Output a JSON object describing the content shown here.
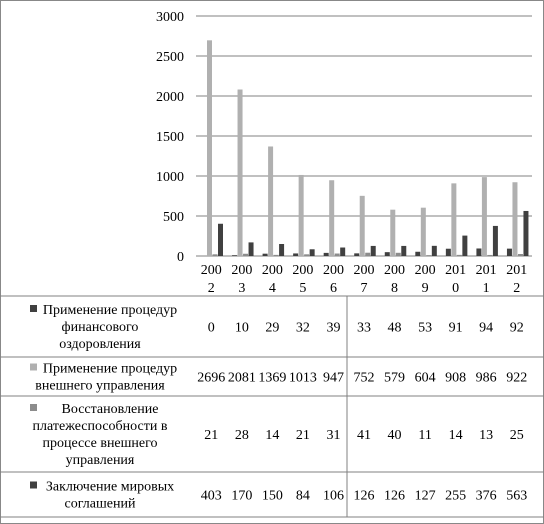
{
  "chart_data": {
    "type": "bar",
    "categories": [
      "2002",
      "2003",
      "2004",
      "2005",
      "2006",
      "2007",
      "2008",
      "2009",
      "2010",
      "2011",
      "2012"
    ],
    "ylim": [
      0,
      3000
    ],
    "yticks": [
      0,
      500,
      1000,
      1500,
      2000,
      2500,
      3000
    ],
    "grid": true,
    "series": [
      {
        "name": "Применение процедур финансового оздоровления",
        "color": "#404040",
        "values": [
          0,
          10,
          29,
          32,
          39,
          33,
          48,
          53,
          91,
          94,
          92
        ]
      },
      {
        "name": "Применение процедур внешнего управления",
        "color": "#b0b0b0",
        "values": [
          2696,
          2081,
          1369,
          1013,
          947,
          752,
          579,
          604,
          908,
          986,
          922
        ]
      },
      {
        "name": "Восстановление платежеспособности в процессе внешнего управления",
        "color": "#8c8c8c",
        "values": [
          21,
          28,
          14,
          21,
          31,
          41,
          40,
          11,
          14,
          13,
          25
        ]
      },
      {
        "name": "Заключение мировых соглашений",
        "color": "#404040",
        "values": [
          403,
          170,
          150,
          84,
          106,
          126,
          126,
          127,
          255,
          376,
          563
        ]
      }
    ]
  },
  "xtick_lines": [
    [
      "200",
      "2"
    ],
    [
      "200",
      "3"
    ],
    [
      "200",
      "4"
    ],
    [
      "200",
      "5"
    ],
    [
      "200",
      "6"
    ],
    [
      "200",
      "7"
    ],
    [
      "200",
      "8"
    ],
    [
      "200",
      "9"
    ],
    [
      "201",
      "0"
    ],
    [
      "201",
      "1"
    ],
    [
      "201",
      "2"
    ]
  ],
  "legend_lines": [
    [
      "Применение процедур",
      "финансового",
      "оздоровления"
    ],
    [
      "Применение процедур",
      "внешнего управления"
    ],
    [
      "Восстановление",
      "платежеспособности в",
      "процессе внешнего",
      "управления"
    ],
    [
      "Заключение мировых",
      "соглашений"
    ]
  ],
  "table_rows": [
    [
      "0",
      "10",
      "29",
      "32",
      "39",
      "33",
      "48",
      "53",
      "91",
      "94",
      "92"
    ],
    [
      "2696",
      "2081",
      "1369",
      "1013",
      "947",
      "752",
      "579",
      "604",
      "908",
      "986",
      "922"
    ],
    [
      "21",
      "28",
      "14",
      "21",
      "31",
      "41",
      "40",
      "11",
      "14",
      "13",
      "25"
    ],
    [
      "403",
      "170",
      "150",
      "84",
      "106",
      "126",
      "126",
      "127",
      "255",
      "376",
      "563"
    ]
  ]
}
